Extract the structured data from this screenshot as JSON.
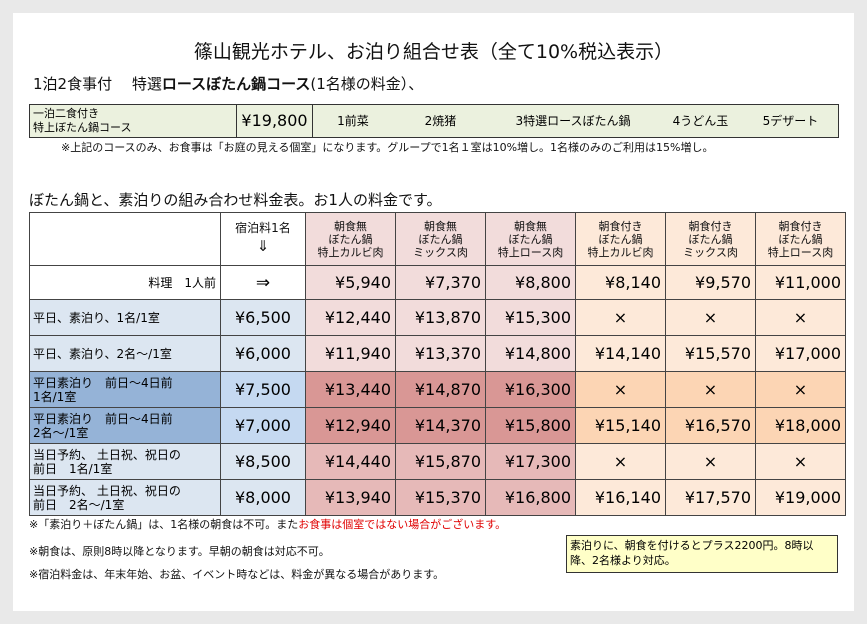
{
  "title": "篠山観光ホテル、お泊り組合せ表（全て10%税込表示）",
  "subtitle1_prefix": "1泊2食事付　 特選",
  "subtitle1_bold": "ロースぼたん鍋コース",
  "subtitle1_suffix": "(1名様の料金）、",
  "course": {
    "name_line1": "一泊二食付き",
    "name_line2": "特上ぼたん鍋コース",
    "price": "¥19,800",
    "items": [
      "1前菜",
      "2焼猪",
      "3特選ロースぼたん鍋",
      "4うどん玉",
      "5デザート"
    ]
  },
  "note1": "※上記のコースのみ、お食事は「お庭の見える個室」になります。グループで1名１室は10%増し。1名様のみのご利用は15%増し。",
  "subtitle2": "ぼたん鍋と、素泊りの組み合わせ料金表。お1人の料金です。",
  "table": {
    "col_room": [
      "宿泊料1名",
      "⇓"
    ],
    "col_headers": [
      [
        "朝食無",
        "ぼたん鍋",
        "特上カルビ肉"
      ],
      [
        "朝食無",
        "ぼたん鍋",
        "ミックス肉"
      ],
      [
        "朝食無",
        "ぼたん鍋",
        "特上ロース肉"
      ],
      [
        "朝食付き",
        "ぼたん鍋",
        "特上カルビ肉"
      ],
      [
        "朝食付き",
        "ぼたん鍋",
        "ミックス肉"
      ],
      [
        "朝食付き",
        "ぼたん鍋",
        "特上ロース肉"
      ]
    ],
    "price_row": {
      "label": "料理　1人前",
      "arrow": "⇒",
      "values": [
        "¥5,940",
        "¥7,370",
        "¥8,800",
        "¥8,140",
        "¥9,570",
        "¥11,000"
      ]
    },
    "rows": [
      {
        "label1": "平日、素泊り、1名/1室",
        "label2": "",
        "room": "¥6,500",
        "values": [
          "¥12,440",
          "¥13,870",
          "¥15,300",
          "×",
          "×",
          "×"
        ]
      },
      {
        "label1": "平日、素泊り、2名～/1室",
        "label2": "",
        "room": "¥6,000",
        "values": [
          "¥11,940",
          "¥13,370",
          "¥14,800",
          "¥14,140",
          "¥15,570",
          "¥17,000"
        ]
      },
      {
        "label1": "平日素泊り　前日～4日前",
        "label2": "1名/1室",
        "room": "¥7,500",
        "values": [
          "¥13,440",
          "¥14,870",
          "¥16,300",
          "×",
          "×",
          "×"
        ]
      },
      {
        "label1": "平日素泊り　前日～4日前",
        "label2": "2名～/1室",
        "room": "¥7,000",
        "values": [
          "¥12,940",
          "¥14,370",
          "¥15,800",
          "¥15,140",
          "¥16,570",
          "¥18,000"
        ]
      },
      {
        "label1": "当日予約、 土日祝、祝日の",
        "label2": "前日　1名/1室",
        "room": "¥8,500",
        "values": [
          "¥14,440",
          "¥15,870",
          "¥17,300",
          "×",
          "×",
          "×"
        ]
      },
      {
        "label1": "当日予約、 土日祝、祝日の",
        "label2": "前日　2名～/1室",
        "room": "¥8,000",
        "values": [
          "¥13,940",
          "¥15,370",
          "¥16,800",
          "¥16,140",
          "¥17,570",
          "¥19,000"
        ]
      }
    ]
  },
  "footer": {
    "line1_black": "※「素泊り＋ぼたん鍋」は、1名様の朝食は不可。また",
    "line1_red": "お食事は個室ではない場合がございます。",
    "line2": "※朝食は、原則8時以降となります。早朝の朝食は対応不可。",
    "line3": "※宿泊料金は、年末年始、お盆、イベント時などは、料金が異なる場合があります。",
    "box": "素泊りに、朝食を付けるとプラス2200円。8時以降、2名様より対応。"
  },
  "colors": {
    "course_bg": "#ebf1de",
    "header_pink": "#f2dcdb",
    "header_peach": "#fde9d9",
    "row_blue_light": "#dce6f1",
    "row_blue_mid": "#c5d9f1",
    "row_blue_dark": "#95b3d7",
    "note_box": "#ffffc8",
    "warning_red": "#e00000"
  }
}
